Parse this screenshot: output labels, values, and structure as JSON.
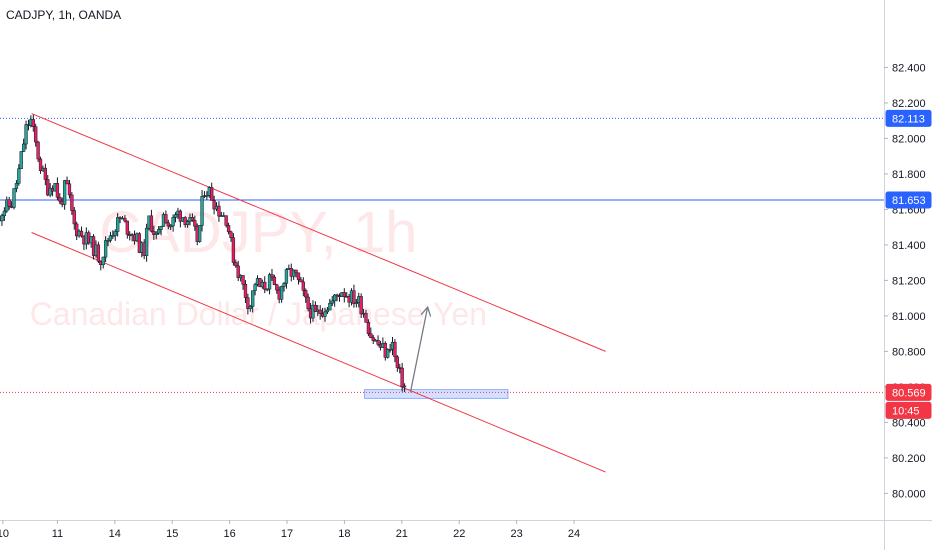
{
  "header": {
    "symbol_title": "CADJPY, 1h, OANDA"
  },
  "watermark": {
    "title": "CADJPY, 1h",
    "subtitle": "Canadian Dollar / Japanese Yen"
  },
  "colors": {
    "up": "#26a69a",
    "down": "#e91e63",
    "candle": "#131722",
    "channel": "#f23645",
    "hline": "#2962ff",
    "zone": "#2962ff",
    "current_price": "#f23645",
    "axis_text": "#131722",
    "grid": "#f0f3fa"
  },
  "chart_data": {
    "type": "candlestick",
    "symbol": "CADJPY",
    "timeframe": "1h",
    "broker": "OANDA",
    "xlim": [
      10.0,
      25.4
    ],
    "ylim": [
      79.85,
      82.78
    ],
    "y_ticks": [
      80.0,
      80.2,
      80.4,
      80.6,
      80.8,
      81.0,
      81.2,
      81.4,
      81.6,
      81.8,
      82.0,
      82.2,
      82.4
    ],
    "y_tick_labels": [
      "80.000",
      "80.200",
      "80.400",
      "80.600",
      "80.800",
      "81.000",
      "81.200",
      "81.400",
      "81.600",
      "81.800",
      "82.000",
      "82.200",
      "82.400"
    ],
    "x_ticks": [
      10,
      11,
      14,
      15,
      16,
      17,
      18,
      21,
      22,
      23,
      24
    ],
    "x_tick_positions": [
      10.05,
      11.0,
      12.0,
      13.0,
      14.0,
      15.0,
      16.0,
      17.0,
      18.0,
      19.0,
      20.0
    ],
    "close_path": [
      [
        9.95,
        81.55
      ],
      [
        10.05,
        81.6
      ],
      [
        10.2,
        81.63
      ],
      [
        10.32,
        81.8
      ],
      [
        10.45,
        82.05
      ],
      [
        10.53,
        82.11
      ],
      [
        10.6,
        82.0
      ],
      [
        10.7,
        81.85
      ],
      [
        10.82,
        81.72
      ],
      [
        10.95,
        81.75
      ],
      [
        11.05,
        81.62
      ],
      [
        11.15,
        81.75
      ],
      [
        11.3,
        81.5
      ],
      [
        11.45,
        81.45
      ],
      [
        11.6,
        81.4
      ],
      [
        11.75,
        81.32
      ],
      [
        11.9,
        81.45
      ],
      [
        12.0,
        81.5
      ],
      [
        12.1,
        81.55
      ],
      [
        12.2,
        81.5
      ],
      [
        12.35,
        81.45
      ],
      [
        12.5,
        81.35
      ],
      [
        12.6,
        81.55
      ],
      [
        12.75,
        81.42
      ],
      [
        12.85,
        81.6
      ],
      [
        12.95,
        81.5
      ],
      [
        13.1,
        81.58
      ],
      [
        13.25,
        81.55
      ],
      [
        13.35,
        81.5
      ],
      [
        13.45,
        81.42
      ],
      [
        13.55,
        81.72
      ],
      [
        13.65,
        81.7
      ],
      [
        13.8,
        81.6
      ],
      [
        13.95,
        81.55
      ],
      [
        14.05,
        81.35
      ],
      [
        14.15,
        81.25
      ],
      [
        14.25,
        81.15
      ],
      [
        14.35,
        81.05
      ],
      [
        14.45,
        81.2
      ],
      [
        14.55,
        81.15
      ],
      [
        14.7,
        81.2
      ],
      [
        14.85,
        81.12
      ],
      [
        14.95,
        81.2
      ],
      [
        15.05,
        81.25
      ],
      [
        15.15,
        81.22
      ],
      [
        15.25,
        81.15
      ],
      [
        15.35,
        81.05
      ],
      [
        15.5,
        81.0
      ],
      [
        15.65,
        81.05
      ],
      [
        15.8,
        81.08
      ],
      [
        15.95,
        81.15
      ],
      [
        16.05,
        81.12
      ],
      [
        16.15,
        81.1
      ],
      [
        16.25,
        81.08
      ],
      [
        16.35,
        81.02
      ],
      [
        16.45,
        80.9
      ],
      [
        16.55,
        80.85
      ],
      [
        16.65,
        80.82
      ],
      [
        16.75,
        80.78
      ],
      [
        16.82,
        80.88
      ],
      [
        16.9,
        80.72
      ],
      [
        16.98,
        80.65
      ],
      [
        17.05,
        80.6
      ]
    ],
    "channel_upper": {
      "from": [
        10.55,
        82.14
      ],
      "to": [
        20.55,
        80.8
      ]
    },
    "channel_lower": {
      "from": [
        10.55,
        81.47
      ],
      "to": [
        20.55,
        80.12
      ]
    },
    "support_zone": {
      "x": [
        16.35,
        18.85
      ],
      "y": [
        80.535,
        80.585
      ]
    },
    "projection_arrow": {
      "from": [
        17.15,
        80.57
      ],
      "to": [
        17.45,
        81.05
      ]
    },
    "levels": [
      {
        "price": 82.113,
        "label": "82.113",
        "style": "dotted"
      },
      {
        "price": 81.653,
        "label": "81.653",
        "style": "solid"
      }
    ],
    "current_price": {
      "price": 80.569,
      "label": "80.569",
      "countdown": "10:45"
    }
  }
}
